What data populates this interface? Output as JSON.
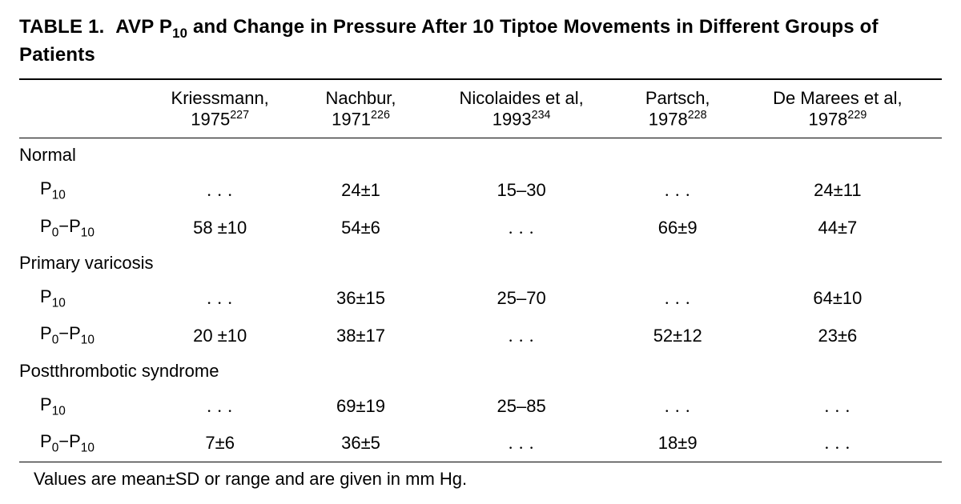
{
  "title": {
    "label": "TABLE 1.",
    "text_before": "AVP P",
    "sub": "10",
    "text_after": " and Change in Pressure After 10 Tiptoe Movements in Different Groups of Patients"
  },
  "columns": [
    {
      "author": "",
      "year": "",
      "ref": ""
    },
    {
      "author": "Kriessmann,",
      "year": "1975",
      "ref": "227"
    },
    {
      "author": "Nachbur,",
      "year": "1971",
      "ref": "226"
    },
    {
      "author": "Nicolaides et al,",
      "year": "1993",
      "ref": "234"
    },
    {
      "author": "Partsch,",
      "year": "1978",
      "ref": "228"
    },
    {
      "author": "De Marees et al,",
      "year": "1978",
      "ref": "229"
    }
  ],
  "groups": [
    {
      "name": "Normal",
      "rows": [
        {
          "label_pre": "P",
          "label_sub": "10",
          "label_post": "",
          "cells": [
            ". . .",
            "24±1",
            "15–30",
            ". . .",
            "24±11"
          ]
        },
        {
          "label_pre": "P",
          "label_sub": "0",
          "label_mid": "−P",
          "label_sub2": "10",
          "cells": [
            "58 ±10",
            "54±6",
            ". . .",
            "66±9",
            "44±7"
          ]
        }
      ]
    },
    {
      "name": "Primary varicosis",
      "rows": [
        {
          "label_pre": "P",
          "label_sub": "10",
          "label_post": "",
          "cells": [
            ". . .",
            "36±15",
            "25–70",
            ". . .",
            "64±10"
          ]
        },
        {
          "label_pre": "P",
          "label_sub": "0",
          "label_mid": "−P",
          "label_sub2": "10",
          "cells": [
            "20 ±10",
            "38±17",
            ". . .",
            "52±12",
            "23±6"
          ]
        }
      ]
    },
    {
      "name": "Postthrombotic syndrome",
      "rows": [
        {
          "label_pre": "P",
          "label_sub": "10",
          "label_post": "",
          "cells": [
            ". . .",
            "69±19",
            "25–85",
            ". . .",
            ". . ."
          ]
        },
        {
          "label_pre": "P",
          "label_sub": "0",
          "label_mid": "−P",
          "label_sub2": "10",
          "cells": [
            "7±6",
            "36±5",
            ". . .",
            "18±9",
            ". . ."
          ]
        }
      ]
    }
  ],
  "footnote": "Values are mean±SD or range and are given in mm Hg."
}
